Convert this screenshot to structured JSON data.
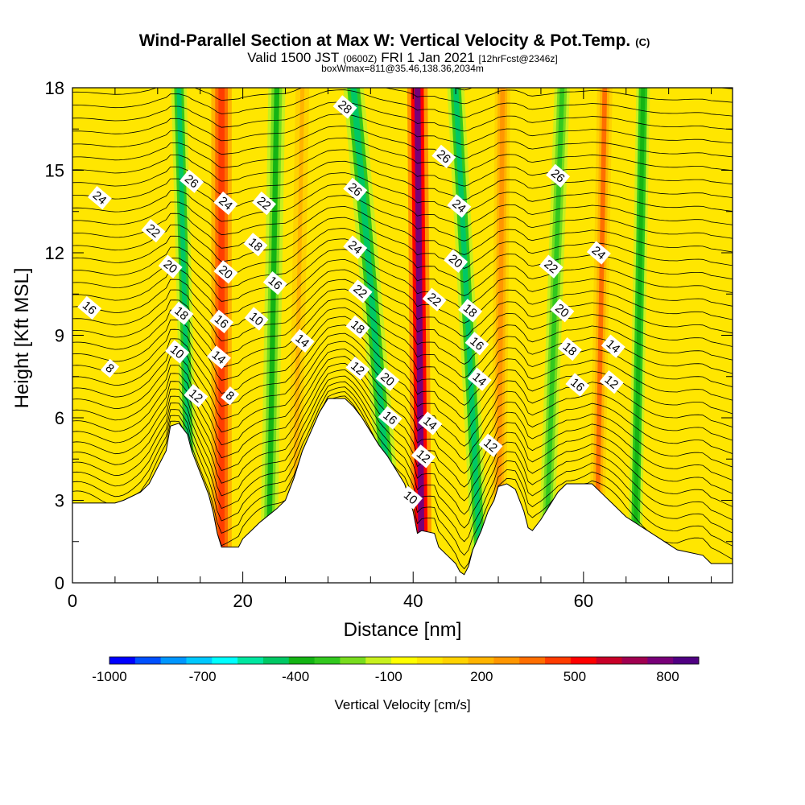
{
  "chart_data": {
    "type": "heatmap",
    "title": "Wind-Parallel Section at Max W: Vertical Velocity & Pot.Temp.",
    "title_mark": "(C)",
    "subtitle_main": "Valid 1500 JST",
    "subtitle_utc": "(0600Z)",
    "subtitle_date": "FRI 1 Jan 2021",
    "subtitle_fcst": "[12hrFcst@2346z]",
    "subtitle2": "boxWmax=811@35.46,138.36,2034m",
    "xlabel": "Distance [nm]",
    "ylabel": "Height [Kft MSL]",
    "xlim": [
      0,
      77.5
    ],
    "ylim": [
      0,
      18
    ],
    "xticks": [
      0,
      20,
      40,
      60
    ],
    "yticks": [
      0,
      3,
      6,
      9,
      12,
      15,
      18
    ],
    "colorbar": {
      "label": "Vertical Velocity [cm/s]",
      "range": [
        -1000,
        900
      ],
      "tick_values": [
        -1000,
        -700,
        -400,
        -100,
        200,
        500,
        800
      ],
      "tick_labels": [
        "-1000",
        "-700",
        "-400",
        "-100",
        "200",
        "500",
        "800"
      ],
      "colors": [
        "#0000ff",
        "#0050ff",
        "#0096ff",
        "#00c8ff",
        "#00ffff",
        "#00e6a0",
        "#00c864",
        "#14b414",
        "#32c81e",
        "#78dc1e",
        "#c8f01e",
        "#ffff00",
        "#ffe600",
        "#ffd200",
        "#ffb400",
        "#ff9600",
        "#ff6e00",
        "#ff3c00",
        "#ff0000",
        "#c80028",
        "#a00050",
        "#780078",
        "#500082"
      ]
    },
    "terrain": [
      [
        0,
        2.9
      ],
      [
        5,
        2.9
      ],
      [
        6,
        3.0
      ],
      [
        8,
        3.3
      ],
      [
        9,
        3.6
      ],
      [
        10,
        4.2
      ],
      [
        11,
        4.8
      ],
      [
        11.5,
        5.7
      ],
      [
        12.5,
        5.8
      ],
      [
        13.5,
        5.4
      ],
      [
        14,
        4.8
      ],
      [
        15,
        4.0
      ],
      [
        16,
        3.2
      ],
      [
        16.5,
        2.6
      ],
      [
        17,
        1.8
      ],
      [
        17.5,
        1.3
      ],
      [
        19.5,
        1.3
      ],
      [
        20,
        1.6
      ],
      [
        21,
        1.9
      ],
      [
        22,
        2.2
      ],
      [
        24,
        2.7
      ],
      [
        25,
        3.0
      ],
      [
        26,
        3.8
      ],
      [
        27,
        4.8
      ],
      [
        28,
        5.5
      ],
      [
        29,
        6.2
      ],
      [
        30,
        6.7
      ],
      [
        32,
        6.7
      ],
      [
        33,
        6.4
      ],
      [
        34,
        6.0
      ],
      [
        35,
        5.5
      ],
      [
        36,
        5.0
      ],
      [
        37,
        4.6
      ],
      [
        38,
        4.1
      ],
      [
        39,
        3.6
      ],
      [
        40,
        2.6
      ],
      [
        40.5,
        1.8
      ],
      [
        41,
        1.9
      ],
      [
        42.5,
        1.8
      ],
      [
        43,
        1.3
      ],
      [
        44,
        1.0
      ],
      [
        45,
        0.7
      ],
      [
        45.5,
        0.4
      ],
      [
        46,
        0.3
      ],
      [
        46.5,
        0.6
      ],
      [
        47,
        1.2
      ],
      [
        48,
        1.9
      ],
      [
        48.8,
        2.6
      ],
      [
        49.5,
        3.0
      ],
      [
        50,
        3.5
      ],
      [
        51,
        3.6
      ],
      [
        52,
        3.4
      ],
      [
        53,
        2.6
      ],
      [
        53.5,
        2.0
      ],
      [
        54,
        1.9
      ],
      [
        55,
        2.3
      ],
      [
        56,
        2.8
      ],
      [
        57,
        3.3
      ],
      [
        58,
        3.6
      ],
      [
        61,
        3.6
      ],
      [
        62,
        3.3
      ],
      [
        63,
        3.0
      ],
      [
        64,
        2.7
      ],
      [
        65,
        2.4
      ],
      [
        66,
        2.2
      ],
      [
        67,
        2.0
      ],
      [
        68,
        1.8
      ],
      [
        69,
        1.6
      ],
      [
        70,
        1.4
      ],
      [
        71,
        1.2
      ],
      [
        74,
        1.0
      ],
      [
        75,
        0.7
      ],
      [
        77.5,
        0.7
      ]
    ],
    "vertical_velocity_bands": [
      {
        "x_top": 12.5,
        "x_bottom": 14.0,
        "width": 1.8,
        "value": -450
      },
      {
        "x_top": 17.5,
        "x_bottom": 17.5,
        "width": 2.4,
        "value": 480
      },
      {
        "x_top": 24.0,
        "x_bottom": 23.0,
        "width": 2.0,
        "value": -350
      },
      {
        "x_top": 27.0,
        "x_bottom": 26.0,
        "width": 1.6,
        "value": 220
      },
      {
        "x_top": 33.0,
        "x_bottom": 38.0,
        "width": 2.4,
        "value": -460
      },
      {
        "x_top": 40.5,
        "x_bottom": 41.0,
        "width": 2.4,
        "value": 800
      },
      {
        "x_top": 45.0,
        "x_bottom": 48.0,
        "width": 2.0,
        "value": -430
      },
      {
        "x_top": 50.5,
        "x_bottom": 50.0,
        "width": 1.8,
        "value": 260
      },
      {
        "x_top": 57.5,
        "x_bottom": 55.5,
        "width": 1.8,
        "value": -300
      },
      {
        "x_top": 62.5,
        "x_bottom": 61.5,
        "width": 1.8,
        "value": 330
      },
      {
        "x_top": 67.0,
        "x_bottom": 66.0,
        "width": 1.6,
        "value": -380
      }
    ],
    "contour_labels": [
      {
        "text": "24",
        "x": 3.2,
        "y": 14.0
      },
      {
        "text": "26",
        "x": 14.0,
        "y": 14.6
      },
      {
        "text": "22",
        "x": 9.5,
        "y": 12.8
      },
      {
        "text": "20",
        "x": 11.5,
        "y": 11.5
      },
      {
        "text": "16",
        "x": 2.0,
        "y": 10.0
      },
      {
        "text": "18",
        "x": 12.8,
        "y": 9.8
      },
      {
        "text": "10",
        "x": 12.3,
        "y": 8.4
      },
      {
        "text": "8",
        "x": 4.4,
        "y": 7.8
      },
      {
        "text": "12",
        "x": 14.5,
        "y": 6.8
      },
      {
        "text": "24",
        "x": 18.0,
        "y": 13.8
      },
      {
        "text": "20",
        "x": 18.0,
        "y": 11.3
      },
      {
        "text": "16",
        "x": 17.5,
        "y": 9.5
      },
      {
        "text": "14",
        "x": 17.2,
        "y": 8.2
      },
      {
        "text": "8",
        "x": 18.5,
        "y": 6.8
      },
      {
        "text": "22",
        "x": 22.5,
        "y": 13.8
      },
      {
        "text": "18",
        "x": 21.5,
        "y": 12.3
      },
      {
        "text": "16",
        "x": 23.8,
        "y": 10.9
      },
      {
        "text": "10",
        "x": 21.6,
        "y": 9.6
      },
      {
        "text": "14",
        "x": 27.0,
        "y": 8.8
      },
      {
        "text": "28",
        "x": 32.0,
        "y": 17.3
      },
      {
        "text": "26",
        "x": 33.2,
        "y": 14.3
      },
      {
        "text": "24",
        "x": 33.2,
        "y": 12.2
      },
      {
        "text": "22",
        "x": 33.8,
        "y": 10.6
      },
      {
        "text": "18",
        "x": 33.5,
        "y": 9.3
      },
      {
        "text": "12",
        "x": 33.5,
        "y": 7.8
      },
      {
        "text": "20",
        "x": 37.0,
        "y": 7.4
      },
      {
        "text": "16",
        "x": 37.3,
        "y": 6.0
      },
      {
        "text": "14",
        "x": 42.0,
        "y": 5.8
      },
      {
        "text": "12",
        "x": 41.2,
        "y": 4.6
      },
      {
        "text": "10",
        "x": 39.7,
        "y": 3.1
      },
      {
        "text": "22",
        "x": 42.5,
        "y": 10.3
      },
      {
        "text": "20",
        "x": 45.0,
        "y": 11.7
      },
      {
        "text": "26",
        "x": 43.6,
        "y": 15.5
      },
      {
        "text": "24",
        "x": 45.4,
        "y": 13.7
      },
      {
        "text": "18",
        "x": 46.7,
        "y": 9.9
      },
      {
        "text": "16",
        "x": 47.5,
        "y": 8.7
      },
      {
        "text": "14",
        "x": 47.8,
        "y": 7.4
      },
      {
        "text": "12",
        "x": 49.1,
        "y": 5.0
      },
      {
        "text": "26",
        "x": 57.0,
        "y": 14.8
      },
      {
        "text": "22",
        "x": 56.2,
        "y": 11.5
      },
      {
        "text": "20",
        "x": 57.5,
        "y": 9.9
      },
      {
        "text": "18",
        "x": 58.4,
        "y": 8.5
      },
      {
        "text": "16",
        "x": 59.3,
        "y": 7.2
      },
      {
        "text": "24",
        "x": 61.8,
        "y": 12.0
      },
      {
        "text": "14",
        "x": 63.5,
        "y": 8.6
      },
      {
        "text": "12",
        "x": 63.3,
        "y": 7.3
      }
    ],
    "grid": false
  }
}
